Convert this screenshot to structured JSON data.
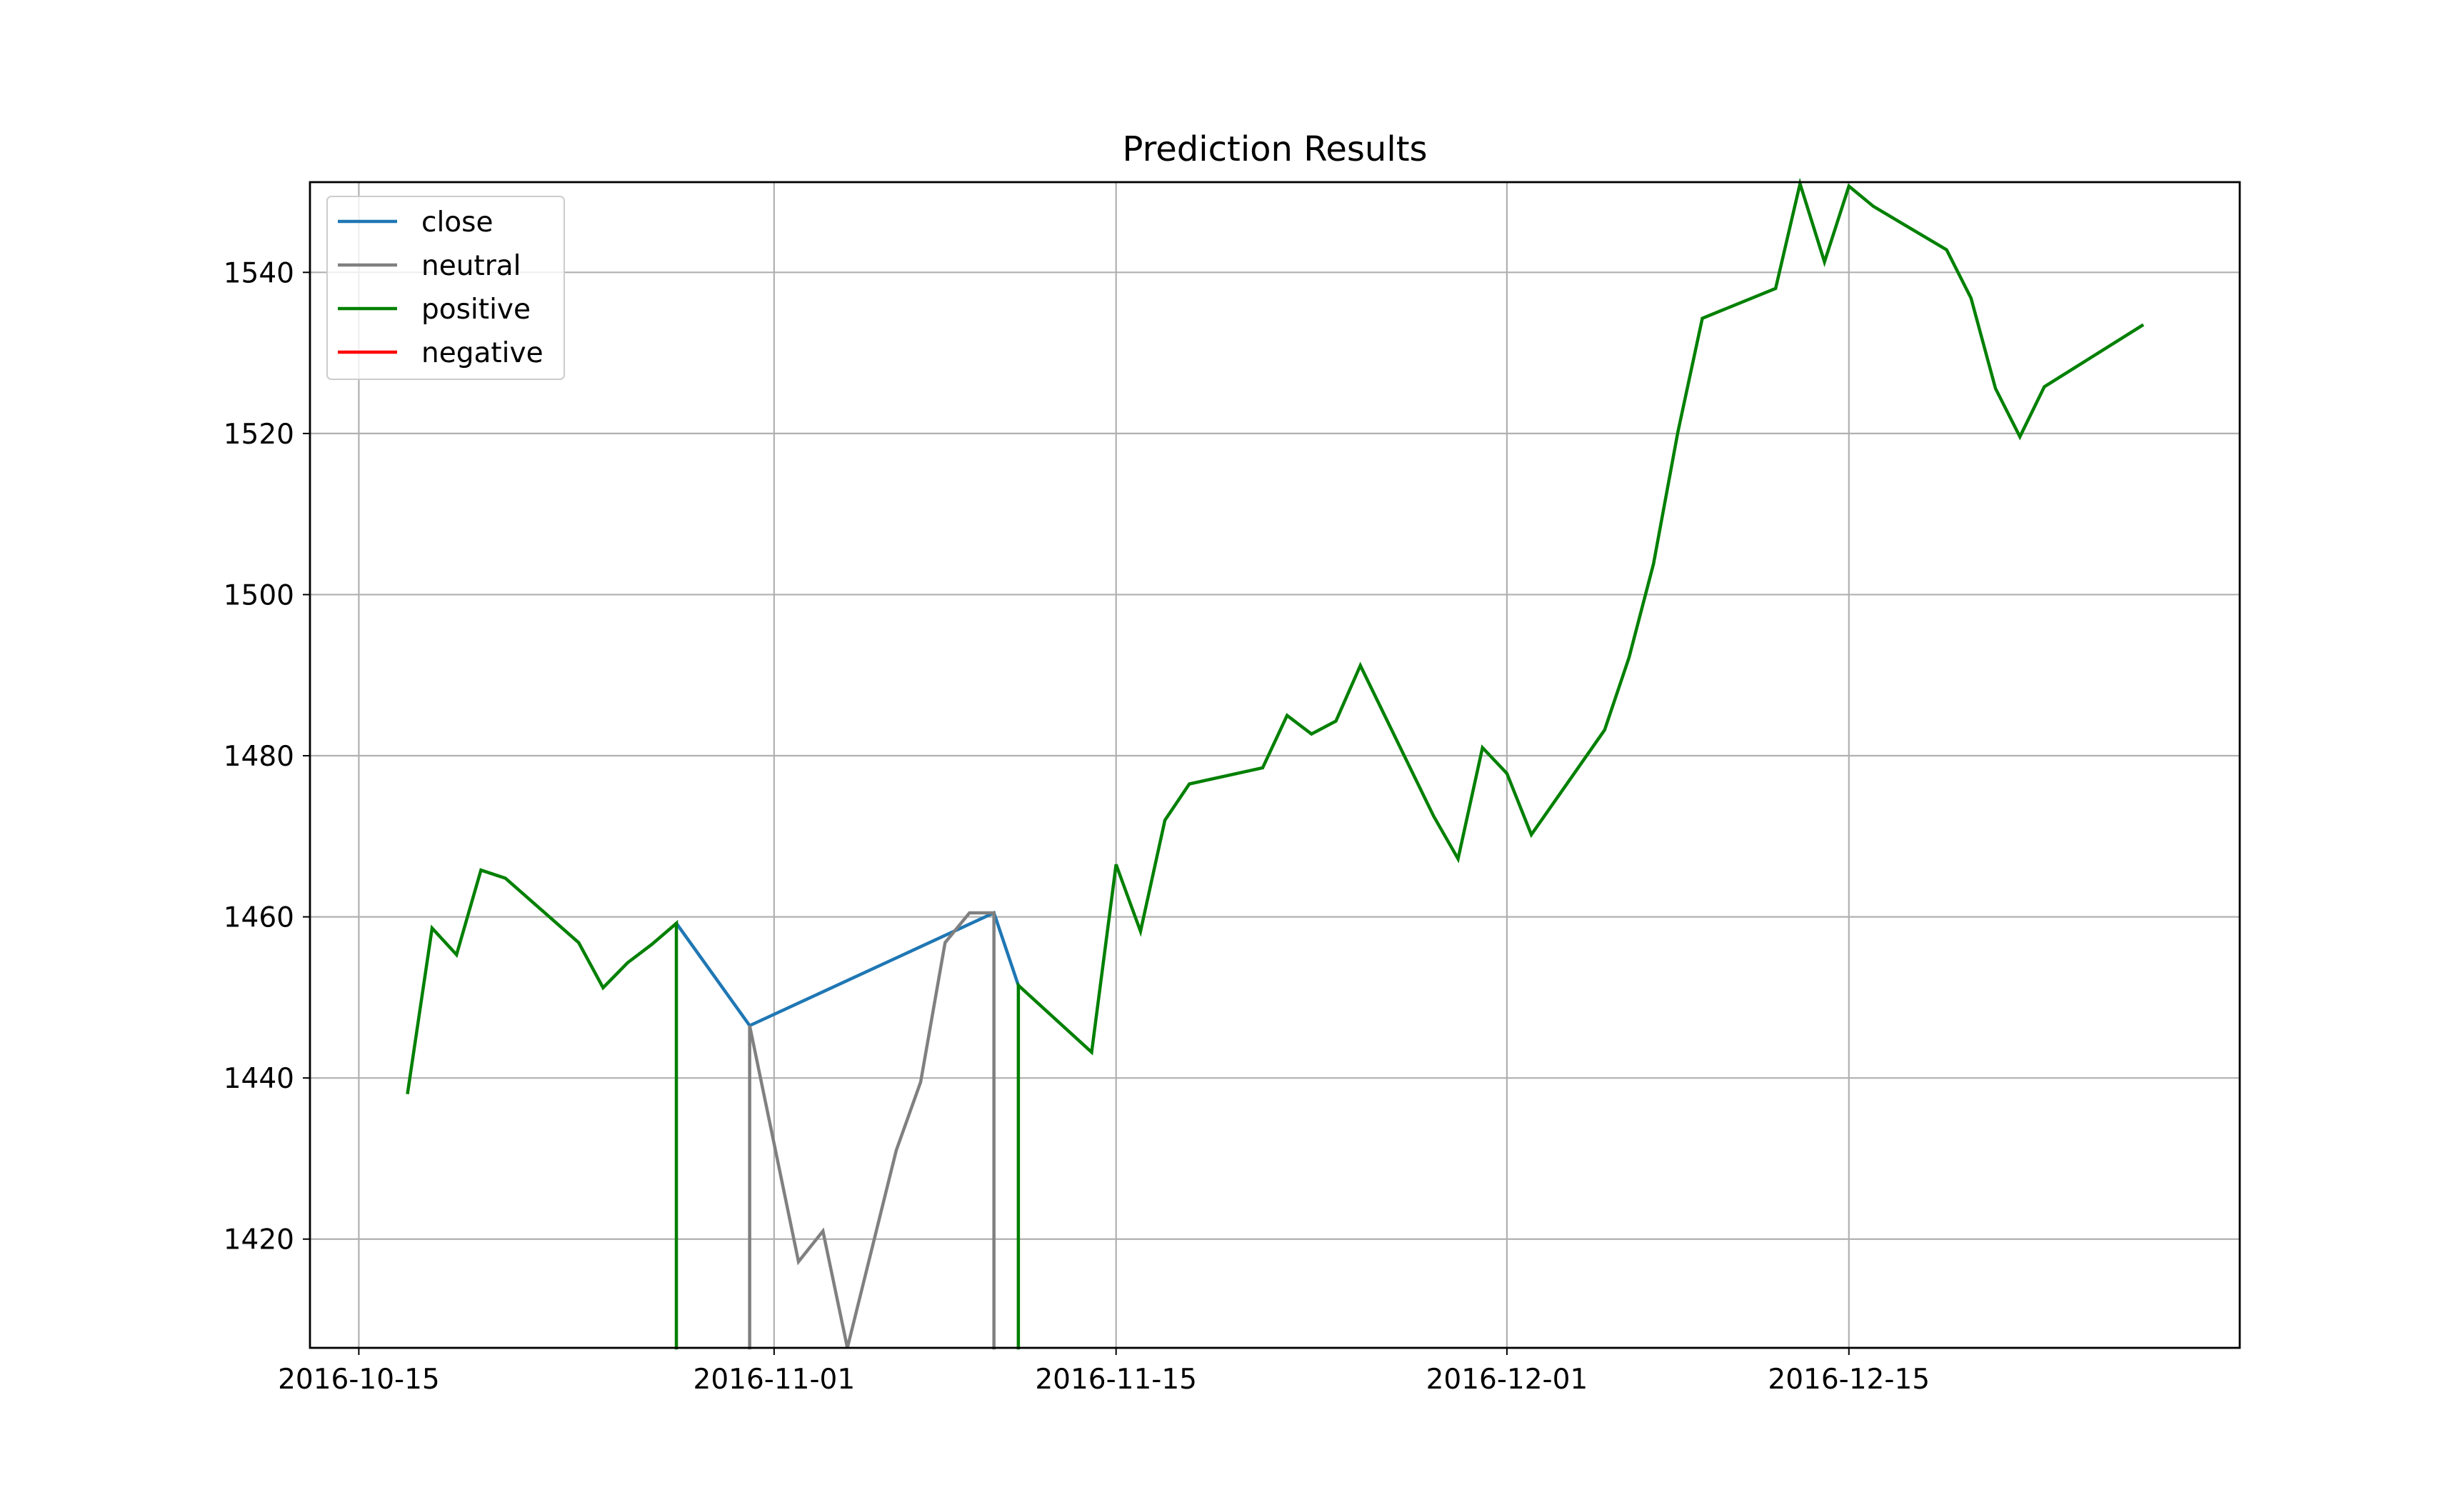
{
  "chart_data": {
    "type": "line",
    "title": "Prediction Results",
    "xlabel": "",
    "ylabel": "",
    "xlim": [
      "2016-10-13",
      "2016-12-31"
    ],
    "ylim": [
      1406.5,
      1551.2
    ],
    "grid": true,
    "legend_position": "top-left",
    "x_ticks": [
      "2016-10-15",
      "2016-11-01",
      "2016-11-15",
      "2016-12-01",
      "2016-12-15"
    ],
    "y_ticks": [
      1420,
      1440,
      1460,
      1480,
      1500,
      1520,
      1540
    ],
    "legend": [
      {
        "name": "close",
        "color": "#1f77b4"
      },
      {
        "name": "neutral",
        "color": "#808080"
      },
      {
        "name": "positive",
        "color": "#008000"
      },
      {
        "name": "negative",
        "color": "#ff0000"
      }
    ],
    "series": [
      {
        "name": "close",
        "color": "#1f77b4",
        "points": [
          [
            "2016-10-28",
            1459.2
          ],
          [
            "2016-10-31",
            1446.5
          ],
          [
            "2016-11-10",
            1460.5
          ],
          [
            "2016-11-11",
            1451.5
          ]
        ]
      },
      {
        "name": "neutral",
        "color": "#808080",
        "points": [
          [
            "2016-10-31",
            1406.5
          ],
          [
            "2016-10-31",
            1446.5
          ],
          [
            "2016-11-02",
            1417.2
          ],
          [
            "2016-11-03",
            1421.0
          ],
          [
            "2016-11-04",
            1406.5
          ],
          [
            "2016-11-06",
            1431.0
          ],
          [
            "2016-11-07",
            1439.5
          ],
          [
            "2016-11-08",
            1456.8
          ],
          [
            "2016-11-09",
            1460.5
          ],
          [
            "2016-11-10",
            1460.5
          ],
          [
            "2016-11-10",
            1406.5
          ]
        ]
      },
      {
        "name": "positive",
        "color": "#008000",
        "segments": [
          [
            [
              "2016-10-17",
              1438.2
            ],
            [
              "2016-10-18",
              1458.6
            ],
            [
              "2016-10-19",
              1455.3
            ],
            [
              "2016-10-20",
              1465.8
            ],
            [
              "2016-10-21",
              1464.8
            ],
            [
              "2016-10-24",
              1456.8
            ],
            [
              "2016-10-25",
              1451.2
            ],
            [
              "2016-10-26",
              1454.3
            ],
            [
              "2016-10-27",
              1456.6
            ],
            [
              "2016-10-28",
              1459.2
            ],
            [
              "2016-10-28",
              1406.5
            ]
          ],
          [
            [
              "2016-11-11",
              1406.5
            ],
            [
              "2016-11-11",
              1451.5
            ],
            [
              "2016-11-14",
              1443.2
            ],
            [
              "2016-11-15",
              1466.5
            ],
            [
              "2016-11-16",
              1458.2
            ],
            [
              "2016-11-17",
              1472.0
            ],
            [
              "2016-11-18",
              1476.5
            ],
            [
              "2016-11-21",
              1478.5
            ],
            [
              "2016-11-22",
              1485.0
            ],
            [
              "2016-11-23",
              1482.7
            ],
            [
              "2016-11-24",
              1484.3
            ],
            [
              "2016-11-25",
              1491.2
            ],
            [
              "2016-11-28",
              1472.5
            ],
            [
              "2016-11-29",
              1467.2
            ],
            [
              "2016-11-30",
              1481.0
            ],
            [
              "2016-12-01",
              1477.8
            ],
            [
              "2016-12-02",
              1470.2
            ],
            [
              "2016-12-05",
              1483.2
            ],
            [
              "2016-12-06",
              1492.2
            ],
            [
              "2016-12-07",
              1503.8
            ],
            [
              "2016-12-08",
              1520.2
            ],
            [
              "2016-12-09",
              1534.3
            ],
            [
              "2016-12-12",
              1538.0
            ],
            [
              "2016-12-13",
              1551.0
            ],
            [
              "2016-12-14",
              1541.3
            ],
            [
              "2016-12-15",
              1550.7
            ],
            [
              "2016-12-16",
              1548.2
            ],
            [
              "2016-12-19",
              1542.8
            ],
            [
              "2016-12-20",
              1536.8
            ],
            [
              "2016-12-21",
              1525.6
            ],
            [
              "2016-12-22",
              1519.6
            ],
            [
              "2016-12-23",
              1525.8
            ],
            [
              "2016-12-27",
              1533.4
            ]
          ]
        ]
      },
      {
        "name": "negative",
        "color": "#ff0000",
        "points": []
      }
    ]
  }
}
